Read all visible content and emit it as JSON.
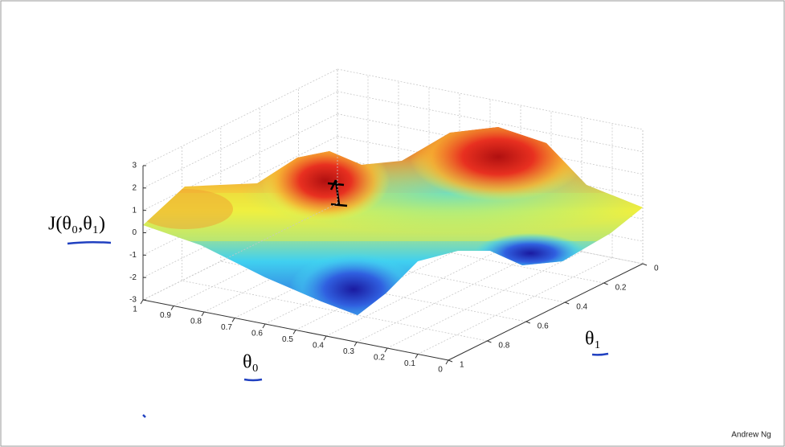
{
  "chart_data": {
    "type": "surface3d",
    "zlabel": "J(θ₀,θ₁)",
    "xlabel": "θ₀",
    "ylabel": "θ₁",
    "xlim": [
      1,
      0
    ],
    "xticks": [
      1,
      0.9,
      0.8,
      0.7,
      0.6,
      0.5,
      0.4,
      0.3,
      0.2,
      0.1,
      0
    ],
    "ylim": [
      1,
      0
    ],
    "yticks": [
      1,
      0.8,
      0.6,
      0.4,
      0.2,
      0
    ],
    "zlim": [
      -3,
      3
    ],
    "zticks": [
      3,
      2,
      1,
      0,
      -1,
      -2,
      -3
    ],
    "grid": true
  },
  "footer": {
    "credit": "Andrew Ng"
  }
}
